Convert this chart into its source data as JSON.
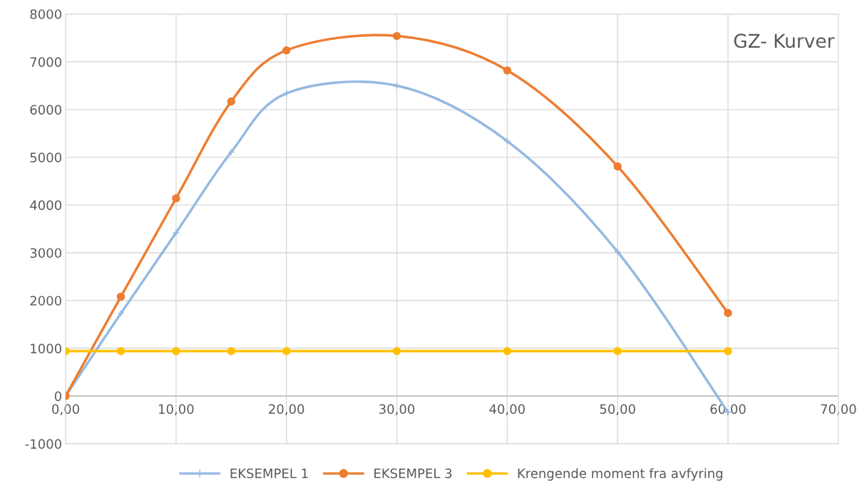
{
  "chart_data": {
    "type": "line",
    "title": "GZ- Kurver",
    "x": [
      0,
      5,
      10,
      15,
      20,
      30,
      40,
      50,
      60
    ],
    "series": [
      {
        "name": "EKSEMPEL 1",
        "color": "#95b9e1",
        "marker": "cross",
        "values": [
          0,
          1730,
          3420,
          5110,
          6340,
          6500,
          5340,
          3020,
          -340
        ]
      },
      {
        "name": "EKSEMPEL 3",
        "color": "#ed7d31",
        "marker": "circle",
        "values": [
          0,
          2080,
          4140,
          6170,
          7240,
          7540,
          6820,
          4810,
          1740
        ]
      },
      {
        "name": "Krengende moment fra avfyring",
        "color": "#ffc000",
        "marker": "circle",
        "values": [
          940,
          940,
          940,
          940,
          940,
          940,
          940,
          940,
          940
        ]
      }
    ],
    "xlim": [
      0,
      70
    ],
    "xticks": [
      {
        "value": 0,
        "label": "0,00"
      },
      {
        "value": 10,
        "label": "10,00"
      },
      {
        "value": 20,
        "label": "20,00"
      },
      {
        "value": 30,
        "label": "30,00"
      },
      {
        "value": 40,
        "label": "40,00"
      },
      {
        "value": 50,
        "label": "50,00"
      },
      {
        "value": 60,
        "label": "60,00"
      },
      {
        "value": 70,
        "label": "70,00"
      }
    ],
    "ylim": [
      -1000,
      8000
    ],
    "yticks": [
      -1000,
      0,
      1000,
      2000,
      3000,
      4000,
      5000,
      6000,
      7000,
      8000
    ],
    "grid": true,
    "legend": "bottom",
    "line_style": "solid"
  }
}
